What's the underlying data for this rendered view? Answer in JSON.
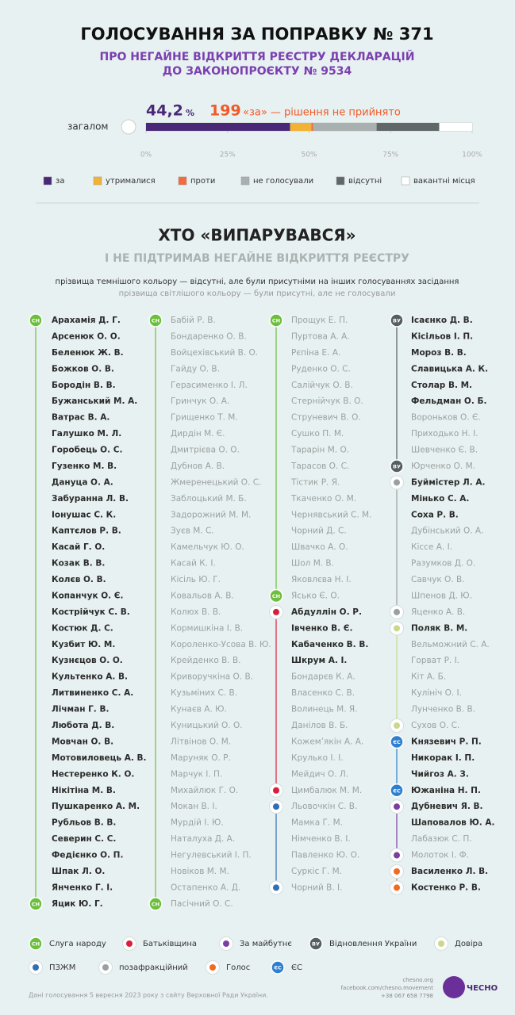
{
  "header": {
    "title": "ГОЛОСУВАННЯ ЗА ПОПРАВКУ № 371",
    "subtitle_1": "ПРО НЕГАЙНЕ ВІДКРИТТЯ РЕЄСТРУ ДЕКЛАРАЦІЙ",
    "subtitle_2": "ДО ЗАКОНОПРОЄКТУ № 9534"
  },
  "summary": {
    "votes": "199",
    "result": "«за» — рішення не прийнято"
  },
  "chart_data": {
    "type": "bar",
    "orientation": "horizontal",
    "stacked": true,
    "categories": [
      "загалом"
    ],
    "series": [
      {
        "name": "за",
        "color": "#4a2878",
        "values": [
          44.2
        ],
        "value_labels": [
          "44,2"
        ],
        "value_label_unit": "%"
      },
      {
        "name": "утрималися",
        "color": "#f2b233",
        "values": [
          6.5
        ]
      },
      {
        "name": "проти",
        "color": "#f26a3d",
        "values": [
          0.5
        ]
      },
      {
        "name": "не голосували",
        "color": "#a9b0b0",
        "values": [
          19.5
        ]
      },
      {
        "name": "відсутні",
        "color": "#5f6768",
        "values": [
          19.2
        ]
      },
      {
        "name": "вакантні місця",
        "color": "#ffffff",
        "values": [
          10.1
        ]
      }
    ],
    "xlim": [
      0,
      100
    ],
    "xticks": [
      {
        "value": 0,
        "label": "0%"
      },
      {
        "value": 25,
        "label": "25%"
      },
      {
        "value": 50,
        "label": "50%"
      },
      {
        "value": 75,
        "label": "75%"
      },
      {
        "value": 100,
        "label": "100%"
      }
    ]
  },
  "section": {
    "title": "ХТО «ВИПАРУВАВСЯ»",
    "subtitle": "І НЕ ПІДТРИМАВ НЕГАЙНЕ ВІДКРИТТЯ РЕЄСТРУ",
    "note_dark": "прізвища темнішого кольору — відсутні, але були присутніми на інших голосуваннях засідання",
    "note_light": "прізвища світлішого кольору — були присутні, але не голосували"
  },
  "factions": [
    {
      "name": "Слуга народу",
      "color": "#6cbf3c",
      "abbr": "СН"
    },
    {
      "name": "Батьківщина",
      "color": "#d8203a"
    },
    {
      "name": "За майбутнє",
      "color": "#7a3fa0"
    },
    {
      "name": "Відновлення України",
      "color": "#555e60",
      "abbr": "ВУ"
    },
    {
      "name": "Довіра",
      "color": "#c9d98a"
    },
    {
      "name": "ПЗЖМ",
      "color": "#2f6fb5"
    },
    {
      "name": "позафракційний",
      "color": "#9aa0a0"
    },
    {
      "name": "Голос",
      "color": "#f26a1d"
    },
    {
      "name": "ЄС",
      "color": "#2f7fd0",
      "abbr": "ЄС"
    }
  ],
  "columns": [
    {
      "groups": [
        {
          "faction": 0,
          "members": [
            {
              "name": "Арахамія Д. Г.",
              "absent": true
            },
            {
              "name": "Арсенюк О. О.",
              "absent": true
            },
            {
              "name": "Беленюк Ж. В.",
              "absent": true
            },
            {
              "name": "Божков О. В.",
              "absent": true
            },
            {
              "name": "Бородін В. В.",
              "absent": true
            },
            {
              "name": "Бужанський М. А.",
              "absent": true
            },
            {
              "name": "Ватрас В. А.",
              "absent": true
            },
            {
              "name": "Галушко М. Л.",
              "absent": true
            },
            {
              "name": "Горобець О. С.",
              "absent": true
            },
            {
              "name": "Гузенко М. В.",
              "absent": true
            },
            {
              "name": "Дануца О. А.",
              "absent": true
            },
            {
              "name": "Забуранна Л. В.",
              "absent": true
            },
            {
              "name": "Іонушас С. К.",
              "absent": true
            },
            {
              "name": "Каптєлов Р. В.",
              "absent": true
            },
            {
              "name": "Касай Г. О.",
              "absent": true
            },
            {
              "name": "Козак В. В.",
              "absent": true
            },
            {
              "name": "Колєв О. В.",
              "absent": true
            },
            {
              "name": "Копанчук О. Є.",
              "absent": true
            },
            {
              "name": "Кострійчук С. В.",
              "absent": true
            },
            {
              "name": "Костюк Д. С.",
              "absent": true
            },
            {
              "name": "Кузбит Ю. М.",
              "absent": true
            },
            {
              "name": "Кузнєцов О. О.",
              "absent": true
            },
            {
              "name": "Культенко А. В.",
              "absent": true
            },
            {
              "name": "Литвиненко С. А.",
              "absent": true
            },
            {
              "name": "Лічман Г. В.",
              "absent": true
            },
            {
              "name": "Любота Д. В.",
              "absent": true
            },
            {
              "name": "Мовчан О. В.",
              "absent": true
            },
            {
              "name": "Мотовиловець А. В.",
              "absent": true
            },
            {
              "name": "Нестеренко К. О.",
              "absent": true
            },
            {
              "name": "Нікітіна М. В.",
              "absent": true
            },
            {
              "name": "Пушкаренко А. М.",
              "absent": true
            },
            {
              "name": "Рубльов В. В.",
              "absent": true
            },
            {
              "name": "Северин С. С.",
              "absent": true
            },
            {
              "name": "Федієнко О. П.",
              "absent": true
            },
            {
              "name": "Шпак Л. О.",
              "absent": true
            },
            {
              "name": "Янченко Г. І.",
              "absent": true
            },
            {
              "name": "Яцик Ю. Г.",
              "absent": true
            }
          ]
        }
      ]
    },
    {
      "groups": [
        {
          "faction": 0,
          "members": [
            {
              "name": "Бабій Р. В.",
              "absent": false
            },
            {
              "name": "Бондаренко О. В.",
              "absent": false
            },
            {
              "name": "Войцехівський В. О.",
              "absent": false
            },
            {
              "name": "Гайду О. В.",
              "absent": false
            },
            {
              "name": "Герасименко І. Л.",
              "absent": false
            },
            {
              "name": "Гринчук О. А.",
              "absent": false
            },
            {
              "name": "Грищенко Т. М.",
              "absent": false
            },
            {
              "name": "Дирдін М. Є.",
              "absent": false
            },
            {
              "name": "Дмитрієва О. О.",
              "absent": false
            },
            {
              "name": "Дубнов А. В.",
              "absent": false
            },
            {
              "name": "Жмеренецький О. С.",
              "absent": false
            },
            {
              "name": "Заблоцький М. Б.",
              "absent": false
            },
            {
              "name": "Задорожний М. М.",
              "absent": false
            },
            {
              "name": "Зуєв М. С.",
              "absent": false
            },
            {
              "name": "Камельчук Ю. О.",
              "absent": false
            },
            {
              "name": "Касай К. І.",
              "absent": false
            },
            {
              "name": "Кісіль Ю. Г.",
              "absent": false
            },
            {
              "name": "Ковальов А. В.",
              "absent": false
            },
            {
              "name": "Колюх В. В.",
              "absent": false
            },
            {
              "name": "Кормишкіна І. В.",
              "absent": false
            },
            {
              "name": "Короленко-Усова В. Ю.",
              "absent": false
            },
            {
              "name": "Крейденко В. В.",
              "absent": false
            },
            {
              "name": "Криворучкіна О. В.",
              "absent": false
            },
            {
              "name": "Кузьміних С. В.",
              "absent": false
            },
            {
              "name": "Кунаєв А. Ю.",
              "absent": false
            },
            {
              "name": "Куницький О. О.",
              "absent": false
            },
            {
              "name": "Літвінов О. М.",
              "absent": false
            },
            {
              "name": "Маруняк О. Р.",
              "absent": false
            },
            {
              "name": "Марчук І. П.",
              "absent": false
            },
            {
              "name": "Михайлюк Г. О.",
              "absent": false
            },
            {
              "name": "Мокан В. І.",
              "absent": false
            },
            {
              "name": "Мурдій І. Ю.",
              "absent": false
            },
            {
              "name": "Наталуха Д. А.",
              "absent": false
            },
            {
              "name": "Негулевський І. П.",
              "absent": false
            },
            {
              "name": "Новіков М. М.",
              "absent": false
            },
            {
              "name": "Остапенко А. Д.",
              "absent": false
            },
            {
              "name": "Пасічний О. С.",
              "absent": false
            }
          ]
        }
      ]
    },
    {
      "groups": [
        {
          "faction": 0,
          "members": [
            {
              "name": "Прощук Е. П.",
              "absent": false
            },
            {
              "name": "Пуртова А. А.",
              "absent": false
            },
            {
              "name": "Рєпіна Е. А.",
              "absent": false
            },
            {
              "name": "Руденко О. С.",
              "absent": false
            },
            {
              "name": "Салійчук О. В.",
              "absent": false
            },
            {
              "name": "Стернійчук В. О.",
              "absent": false
            },
            {
              "name": "Струневич В. О.",
              "absent": false
            },
            {
              "name": "Сушко П. М.",
              "absent": false
            },
            {
              "name": "Тарарін М. О.",
              "absent": false
            },
            {
              "name": "Тарасов О. С.",
              "absent": false
            },
            {
              "name": "Тістик Р. Я.",
              "absent": false
            },
            {
              "name": "Ткаченко О. М.",
              "absent": false
            },
            {
              "name": "Чернявський С. М.",
              "absent": false
            },
            {
              "name": "Чорний Д. С.",
              "absent": false
            },
            {
              "name": "Швачко А. О.",
              "absent": false
            },
            {
              "name": "Шол М. В.",
              "absent": false
            },
            {
              "name": "Яковлєва Н. І.",
              "absent": false
            },
            {
              "name": "Ясько Є. О.",
              "absent": false
            }
          ]
        },
        {
          "faction": 1,
          "members": [
            {
              "name": "Абдуллін О. Р.",
              "absent": true
            },
            {
              "name": "Івченко В. Є.",
              "absent": true
            },
            {
              "name": "Кабаченко В. В.",
              "absent": true
            },
            {
              "name": "Шкрум А. І.",
              "absent": true
            },
            {
              "name": "Бондарєв К. А.",
              "absent": false
            },
            {
              "name": "Власенко С. В.",
              "absent": false
            },
            {
              "name": "Волинець М. Я.",
              "absent": false
            },
            {
              "name": "Данілов В. Б.",
              "absent": false
            },
            {
              "name": "Кожем’якін А. А.",
              "absent": false
            },
            {
              "name": "Крулько І. І.",
              "absent": false
            },
            {
              "name": "Мейдич О. Л.",
              "absent": false
            },
            {
              "name": "Цимбалюк М. М.",
              "absent": false
            }
          ]
        },
        {
          "faction": 5,
          "members": [
            {
              "name": "Льовочкін С. В.",
              "absent": false
            },
            {
              "name": "Мамка Г. М.",
              "absent": false
            },
            {
              "name": "Німченко В. І.",
              "absent": false
            },
            {
              "name": "Павленко Ю. О.",
              "absent": false
            },
            {
              "name": "Суркіс Г. М.",
              "absent": false
            },
            {
              "name": "Чорний В. І.",
              "absent": false
            }
          ]
        }
      ]
    },
    {
      "groups": [
        {
          "faction": 3,
          "members": [
            {
              "name": "Ісаєнко Д. В.",
              "absent": true
            },
            {
              "name": "Кісільов І. П.",
              "absent": true
            },
            {
              "name": "Мороз В. В.",
              "absent": true
            },
            {
              "name": "Славицька А. К.",
              "absent": true
            },
            {
              "name": "Столар В. М.",
              "absent": true
            },
            {
              "name": "Фельдман О. Б.",
              "absent": true
            },
            {
              "name": "Вороньков О. Є.",
              "absent": false
            },
            {
              "name": "Приходько Н. І.",
              "absent": false
            },
            {
              "name": "Шевченко Є. В.",
              "absent": false
            },
            {
              "name": "Юрченко О. М.",
              "absent": false
            }
          ]
        },
        {
          "faction": 6,
          "members": [
            {
              "name": "Буймістер Л. А.",
              "absent": true
            },
            {
              "name": "Мінько С. А.",
              "absent": true
            },
            {
              "name": "Соха Р. В.",
              "absent": true
            },
            {
              "name": "Дубінський О. А.",
              "absent": false
            },
            {
              "name": "Кіссе А. І.",
              "absent": false
            },
            {
              "name": "Разумков Д. О.",
              "absent": false
            },
            {
              "name": "Савчук О. В.",
              "absent": false
            },
            {
              "name": "Шпенов Д. Ю.",
              "absent": false
            },
            {
              "name": "Яценко А. В.",
              "absent": false
            }
          ]
        },
        {
          "faction": 4,
          "members": [
            {
              "name": "Поляк В. М.",
              "absent": true
            },
            {
              "name": "Вельможний С. А.",
              "absent": false
            },
            {
              "name": "Горват Р. І.",
              "absent": false
            },
            {
              "name": "Кіт А. Б.",
              "absent": false
            },
            {
              "name": "Кулініч О. І.",
              "absent": false
            },
            {
              "name": "Лунченко В. В.",
              "absent": false
            },
            {
              "name": "Сухов О. С.",
              "absent": false
            }
          ]
        },
        {
          "faction": 8,
          "members": [
            {
              "name": "Князевич Р. П.",
              "absent": true
            },
            {
              "name": "Никорак І. П.",
              "absent": true
            },
            {
              "name": "Чийгоз А. З.",
              "absent": true
            },
            {
              "name": "Южаніна Н. П.",
              "absent": true
            }
          ]
        },
        {
          "faction": 2,
          "members": [
            {
              "name": "Дубневич Я. В.",
              "absent": true
            },
            {
              "name": "Шаповалов Ю. А.",
              "absent": true
            },
            {
              "name": "Лабазюк С. П.",
              "absent": false
            },
            {
              "name": "Молоток І. Ф.",
              "absent": false
            }
          ]
        },
        {
          "faction": 7,
          "members": [
            {
              "name": "Василенко Л. В.",
              "absent": true
            },
            {
              "name": "Костенко Р. В.",
              "absent": true
            }
          ]
        }
      ]
    }
  ],
  "footer": {
    "site": "chesno.org",
    "facebook": "facebook.com/chesno.movement",
    "phone": "+38 067 658 7798",
    "logo": "ЧЕСНО",
    "source": "Дані голосування 5 вересня 2023 року з сайту Верховної Ради України."
  }
}
